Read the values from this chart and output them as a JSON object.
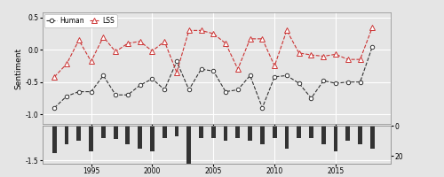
{
  "years": [
    1992,
    1993,
    1994,
    1995,
    1996,
    1997,
    1998,
    1999,
    2000,
    2001,
    2002,
    2003,
    2004,
    2005,
    2006,
    2007,
    2008,
    2009,
    2010,
    2011,
    2012,
    2013,
    2014,
    2015,
    2016,
    2017,
    2018
  ],
  "human": [
    -0.9,
    -0.72,
    -0.65,
    -0.65,
    -0.4,
    -0.7,
    -0.7,
    -0.55,
    -0.45,
    -0.62,
    -0.18,
    -0.62,
    -0.3,
    -0.33,
    -0.65,
    -0.62,
    -0.4,
    -0.9,
    -0.42,
    -0.4,
    -0.52,
    -0.75,
    -0.48,
    -0.52,
    -0.5,
    -0.5,
    0.05
  ],
  "lss": [
    -0.42,
    -0.22,
    0.15,
    -0.18,
    0.2,
    -0.03,
    0.1,
    0.13,
    -0.02,
    0.13,
    -0.35,
    0.3,
    0.3,
    0.25,
    0.1,
    -0.3,
    0.17,
    0.17,
    -0.25,
    0.3,
    -0.05,
    -0.08,
    -0.1,
    -0.07,
    -0.15,
    -0.15,
    0.35
  ],
  "bar_heights": [
    18,
    12,
    10,
    17,
    8,
    9,
    12,
    15,
    17,
    8,
    7,
    25,
    8,
    8,
    10,
    8,
    10,
    12,
    8,
    15,
    8,
    8,
    12,
    17,
    10,
    12,
    15
  ],
  "human_color": "#333333",
  "lss_color": "#cc3333",
  "bar_color": "#333333",
  "bg_color": "#e5e5e5",
  "grid_color": "#ffffff",
  "yticks_main": [
    0.5,
    0.0,
    -0.5,
    -1.0
  ],
  "ytick_labels_main": [
    "0.5",
    "0.0",
    "-0.5",
    "-1.0"
  ],
  "ylabel": "Sentiment",
  "xticks": [
    1995,
    2000,
    2005,
    2010,
    2015
  ],
  "xlim": [
    1991.0,
    2019.5
  ],
  "ylim_main": [
    -1.15,
    0.58
  ],
  "bar_max_articles": 25,
  "bar_display_max": 20,
  "right_yticks_display": [
    20,
    0
  ],
  "bar_panel_ytick_label": "-1.5"
}
